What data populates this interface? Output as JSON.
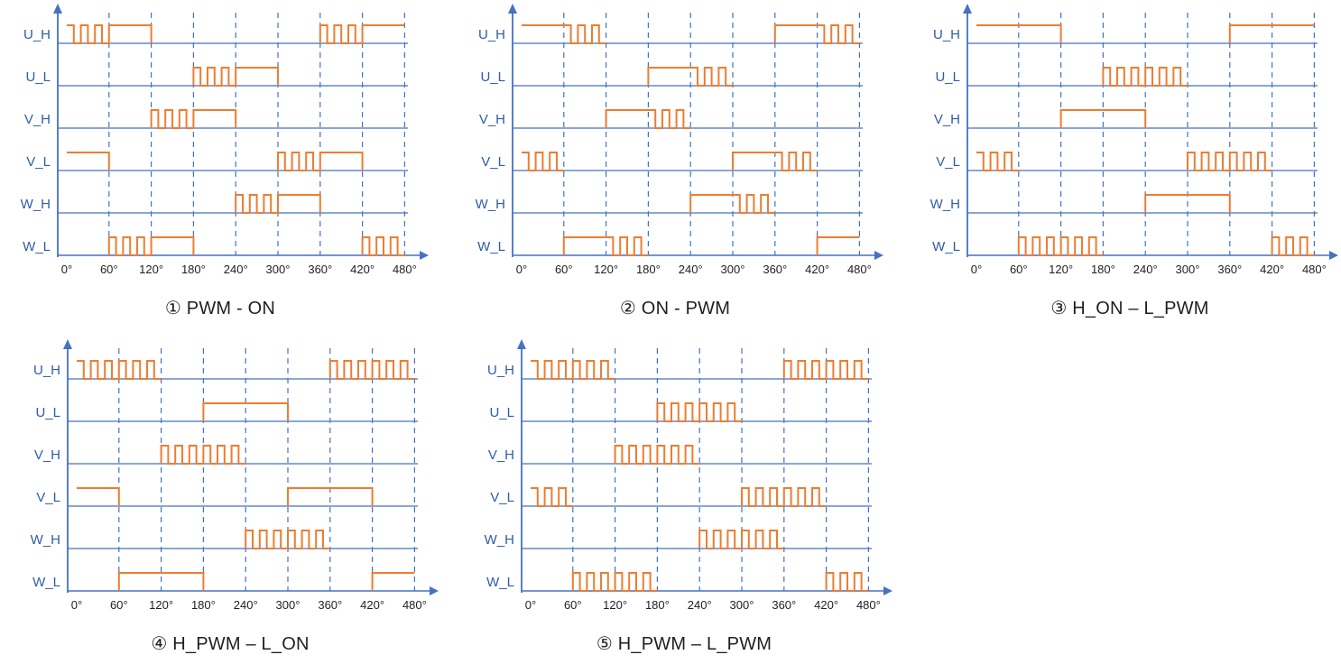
{
  "colors": {
    "axis": "#4472C4",
    "grid": "#4472C4",
    "signal_label": "#2E5CA8",
    "waveform": "#ED7D31",
    "tick_label": "#1F1F1F",
    "caption": "#1F1F1F"
  },
  "chart_data": [
    {
      "type": "line",
      "subtype": "digital-timing-diagram",
      "title": "① PWM - ON",
      "xlabel": "",
      "ylabel": "",
      "x_unit": "degrees",
      "x_range": [
        0,
        480
      ],
      "x_ticks": [
        "0°",
        "60°",
        "120°",
        "180°",
        "240°",
        "300°",
        "360°",
        "420°",
        "480°"
      ],
      "grid": "vertical-dashed",
      "legend": "none",
      "pwm_half_period_deg": 10,
      "signals": [
        {
          "label": "U_H",
          "segments": [
            [
              0,
              60,
              "pwm"
            ],
            [
              60,
              120,
              "on"
            ],
            [
              360,
              420,
              "pwm"
            ],
            [
              420,
              480,
              "on"
            ]
          ]
        },
        {
          "label": "U_L",
          "segments": [
            [
              180,
              240,
              "pwm"
            ],
            [
              240,
              300,
              "on"
            ]
          ]
        },
        {
          "label": "V_H",
          "segments": [
            [
              120,
              180,
              "pwm"
            ],
            [
              180,
              240,
              "on"
            ]
          ]
        },
        {
          "label": "V_L",
          "segments": [
            [
              0,
              60,
              "on"
            ],
            [
              300,
              360,
              "pwm"
            ],
            [
              360,
              420,
              "on"
            ]
          ]
        },
        {
          "label": "W_H",
          "segments": [
            [
              240,
              300,
              "pwm"
            ],
            [
              300,
              360,
              "on"
            ]
          ]
        },
        {
          "label": "W_L",
          "segments": [
            [
              60,
              120,
              "pwm"
            ],
            [
              120,
              180,
              "on"
            ],
            [
              420,
              480,
              "pwm"
            ]
          ]
        }
      ]
    },
    {
      "type": "line",
      "subtype": "digital-timing-diagram",
      "title": "② ON - PWM",
      "xlabel": "",
      "ylabel": "",
      "x_unit": "degrees",
      "x_range": [
        0,
        480
      ],
      "x_ticks": [
        "0°",
        "60°",
        "120°",
        "180°",
        "240°",
        "300°",
        "360°",
        "420°",
        "480°"
      ],
      "grid": "vertical-dashed",
      "legend": "none",
      "pwm_half_period_deg": 10,
      "signals": [
        {
          "label": "U_H",
          "segments": [
            [
              0,
              60,
              "on"
            ],
            [
              60,
              120,
              "pwm"
            ],
            [
              360,
              420,
              "on"
            ],
            [
              420,
              480,
              "pwm"
            ]
          ]
        },
        {
          "label": "U_L",
          "segments": [
            [
              180,
              240,
              "on"
            ],
            [
              240,
              300,
              "pwm"
            ]
          ]
        },
        {
          "label": "V_H",
          "segments": [
            [
              120,
              180,
              "on"
            ],
            [
              180,
              240,
              "pwm"
            ]
          ]
        },
        {
          "label": "V_L",
          "segments": [
            [
              0,
              60,
              "pwm"
            ],
            [
              300,
              360,
              "on"
            ],
            [
              360,
              420,
              "pwm"
            ]
          ]
        },
        {
          "label": "W_H",
          "segments": [
            [
              240,
              300,
              "on"
            ],
            [
              300,
              360,
              "pwm"
            ]
          ]
        },
        {
          "label": "W_L",
          "segments": [
            [
              60,
              120,
              "on"
            ],
            [
              120,
              180,
              "pwm"
            ],
            [
              420,
              480,
              "on"
            ]
          ]
        }
      ]
    },
    {
      "type": "line",
      "subtype": "digital-timing-diagram",
      "title": "③ H_ON – L_PWM",
      "xlabel": "",
      "ylabel": "",
      "x_unit": "degrees",
      "x_range": [
        0,
        480
      ],
      "x_ticks": [
        "0°",
        "60°",
        "120°",
        "180°",
        "240°",
        "300°",
        "360°",
        "420°",
        "480°"
      ],
      "grid": "vertical-dashed",
      "legend": "none",
      "pwm_half_period_deg": 10,
      "signals": [
        {
          "label": "U_H",
          "segments": [
            [
              0,
              120,
              "on"
            ],
            [
              360,
              480,
              "on"
            ]
          ]
        },
        {
          "label": "U_L",
          "segments": [
            [
              180,
              300,
              "pwm"
            ]
          ]
        },
        {
          "label": "V_H",
          "segments": [
            [
              120,
              240,
              "on"
            ]
          ]
        },
        {
          "label": "V_L",
          "segments": [
            [
              0,
              60,
              "pwm"
            ],
            [
              300,
              420,
              "pwm"
            ]
          ]
        },
        {
          "label": "W_H",
          "segments": [
            [
              240,
              360,
              "on"
            ]
          ]
        },
        {
          "label": "W_L",
          "segments": [
            [
              60,
              180,
              "pwm"
            ],
            [
              420,
              480,
              "pwm"
            ]
          ]
        }
      ]
    },
    {
      "type": "line",
      "subtype": "digital-timing-diagram",
      "title": "④ H_PWM – L_ON",
      "xlabel": "",
      "ylabel": "",
      "x_unit": "degrees",
      "x_range": [
        0,
        480
      ],
      "x_ticks": [
        "0°",
        "60°",
        "120°",
        "180°",
        "240°",
        "300°",
        "360°",
        "420°",
        "480°"
      ],
      "grid": "vertical-dashed",
      "legend": "none",
      "pwm_half_period_deg": 10,
      "signals": [
        {
          "label": "U_H",
          "segments": [
            [
              0,
              120,
              "pwm"
            ],
            [
              360,
              480,
              "pwm"
            ]
          ]
        },
        {
          "label": "U_L",
          "segments": [
            [
              180,
              300,
              "on"
            ]
          ]
        },
        {
          "label": "V_H",
          "segments": [
            [
              120,
              240,
              "pwm"
            ]
          ]
        },
        {
          "label": "V_L",
          "segments": [
            [
              0,
              60,
              "on"
            ],
            [
              300,
              420,
              "on"
            ]
          ]
        },
        {
          "label": "W_H",
          "segments": [
            [
              240,
              360,
              "pwm"
            ]
          ]
        },
        {
          "label": "W_L",
          "segments": [
            [
              60,
              180,
              "on"
            ],
            [
              420,
              480,
              "on"
            ]
          ]
        }
      ]
    },
    {
      "type": "line",
      "subtype": "digital-timing-diagram",
      "title": "⑤ H_PWM – L_PWM",
      "xlabel": "",
      "ylabel": "",
      "x_unit": "degrees",
      "x_range": [
        0,
        480
      ],
      "x_ticks": [
        "0°",
        "60°",
        "120°",
        "180°",
        "240°",
        "300°",
        "360°",
        "420°",
        "480°"
      ],
      "grid": "vertical-dashed",
      "legend": "none",
      "pwm_half_period_deg": 10,
      "signals": [
        {
          "label": "U_H",
          "segments": [
            [
              0,
              120,
              "pwm"
            ],
            [
              360,
              480,
              "pwm"
            ]
          ]
        },
        {
          "label": "U_L",
          "segments": [
            [
              180,
              300,
              "pwm"
            ]
          ]
        },
        {
          "label": "V_H",
          "segments": [
            [
              120,
              240,
              "pwm"
            ]
          ]
        },
        {
          "label": "V_L",
          "segments": [
            [
              0,
              60,
              "pwm"
            ],
            [
              300,
              420,
              "pwm"
            ]
          ]
        },
        {
          "label": "W_H",
          "segments": [
            [
              240,
              360,
              "pwm"
            ]
          ]
        },
        {
          "label": "W_L",
          "segments": [
            [
              60,
              180,
              "pwm"
            ],
            [
              420,
              480,
              "pwm"
            ]
          ]
        }
      ]
    }
  ]
}
